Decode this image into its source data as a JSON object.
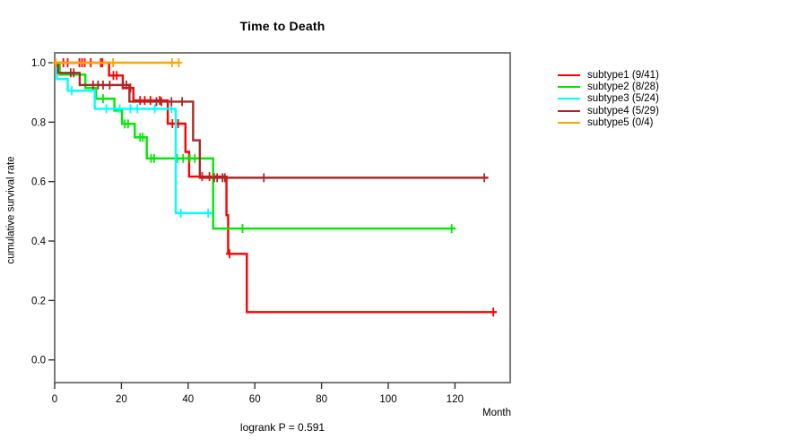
{
  "chart_data": {
    "type": "line",
    "subtype": "kaplan-meier-step-curves",
    "title": "Time to Death",
    "xlabel": "Month",
    "ylabel": "cumulative survival rate",
    "footnote": "logrank P = 0.591",
    "grid": false,
    "legend_position": "right-outside",
    "x_axis": {
      "ticks": [
        0,
        20,
        40,
        60,
        80,
        100,
        120
      ],
      "labels": [
        "0",
        "20",
        "40",
        "60",
        "80",
        "100",
        "120"
      ],
      "range": [
        0,
        136.5
      ]
    },
    "y_axis": {
      "ticks": [
        0.0,
        0.2,
        0.4,
        0.6,
        0.8,
        1.0
      ],
      "labels": [
        "0.0",
        "0.2",
        "0.4",
        "0.6",
        "0.8",
        "1.0"
      ],
      "range": [
        -0.08,
        1.03
      ]
    },
    "series": [
      {
        "name": "subtype1 (9/41)",
        "color": "#FF0000",
        "start_survival": 1.0,
        "steps": [
          [
            16.3,
            0.957
          ],
          [
            20.4,
            0.915
          ],
          [
            23.6,
            0.873
          ],
          [
            33.9,
            0.795
          ],
          [
            39.2,
            0.7
          ],
          [
            40.3,
            0.617
          ],
          [
            51.5,
            0.487
          ],
          [
            52.0,
            0.357
          ],
          [
            57.6,
            0.161
          ]
        ],
        "end_month": 132.5,
        "censors": [
          [
            2.6,
            1.0
          ],
          [
            3.9,
            1.0
          ],
          [
            7.4,
            1.0
          ],
          [
            8.2,
            1.0
          ],
          [
            9.0,
            1.0
          ],
          [
            10.8,
            1.0
          ],
          [
            13.8,
            1.0
          ],
          [
            14.3,
            1.0
          ],
          [
            17.6,
            0.957
          ],
          [
            18.6,
            0.957
          ],
          [
            22.7,
            0.915
          ],
          [
            25.6,
            0.873
          ],
          [
            27.0,
            0.873
          ],
          [
            28.7,
            0.873
          ],
          [
            31.5,
            0.873
          ],
          [
            35.3,
            0.795
          ],
          [
            37.0,
            0.795
          ],
          [
            44.2,
            0.617
          ],
          [
            46.4,
            0.617
          ],
          [
            52.4,
            0.357
          ],
          [
            131.5,
            0.161
          ]
        ]
      },
      {
        "name": "subtype2 (8/28)",
        "color": "#00E800",
        "start_survival": 1.0,
        "steps": [
          [
            1.5,
            0.96
          ],
          [
            9.2,
            0.915
          ],
          [
            12.4,
            0.879
          ],
          [
            17.9,
            0.839
          ],
          [
            20.2,
            0.794
          ],
          [
            24.0,
            0.749
          ],
          [
            27.6,
            0.678
          ],
          [
            47.5,
            0.442
          ]
        ],
        "end_month": 120.2,
        "censors": [
          [
            14.5,
            0.879
          ],
          [
            21.0,
            0.794
          ],
          [
            22.0,
            0.794
          ],
          [
            25.6,
            0.749
          ],
          [
            26.4,
            0.749
          ],
          [
            28.9,
            0.678
          ],
          [
            29.8,
            0.678
          ],
          [
            36.7,
            0.678
          ],
          [
            38.5,
            0.678
          ],
          [
            40.5,
            0.678
          ],
          [
            42.0,
            0.678
          ],
          [
            43.5,
            0.678
          ],
          [
            56.3,
            0.442
          ],
          [
            119.0,
            0.442
          ]
        ]
      },
      {
        "name": "subtype3 (5/24)",
        "color": "#00FFFF",
        "start_survival": 1.0,
        "steps": [
          [
            0.7,
            0.945
          ],
          [
            3.9,
            0.906
          ],
          [
            12.0,
            0.845
          ],
          [
            36.3,
            0.494
          ]
        ],
        "end_month": 47.3,
        "censors": [
          [
            5.1,
            0.906
          ],
          [
            15.5,
            0.845
          ],
          [
            19.5,
            0.845
          ],
          [
            22.7,
            0.845
          ],
          [
            24.8,
            0.845
          ],
          [
            30.0,
            0.845
          ],
          [
            35.0,
            0.845
          ],
          [
            37.8,
            0.494
          ],
          [
            46.0,
            0.494
          ]
        ]
      },
      {
        "name": "subtype4 (5/29)",
        "color": "#A52A2A",
        "start_survival": 1.0,
        "steps": [
          [
            1.0,
            0.966
          ],
          [
            7.5,
            0.925
          ],
          [
            22.4,
            0.869
          ],
          [
            41.5,
            0.739
          ],
          [
            43.5,
            0.613
          ]
        ],
        "end_month": 130.0,
        "censors": [
          [
            4.8,
            0.966
          ],
          [
            5.7,
            0.966
          ],
          [
            11.5,
            0.925
          ],
          [
            13.0,
            0.925
          ],
          [
            14.5,
            0.925
          ],
          [
            16.5,
            0.925
          ],
          [
            20.5,
            0.925
          ],
          [
            21.5,
            0.925
          ],
          [
            30.5,
            0.869
          ],
          [
            32.0,
            0.869
          ],
          [
            35.0,
            0.869
          ],
          [
            38.2,
            0.869
          ],
          [
            47.8,
            0.613
          ],
          [
            48.7,
            0.613
          ],
          [
            50.3,
            0.613
          ],
          [
            51.0,
            0.613
          ],
          [
            62.7,
            0.613
          ],
          [
            128.8,
            0.613
          ]
        ]
      },
      {
        "name": "subtype5 (0/4)",
        "color": "#FFA500",
        "start_survival": 1.0,
        "steps": [],
        "end_month": 37.5,
        "censors": [
          [
            0.3,
            1.0
          ],
          [
            17.5,
            1.0
          ],
          [
            35.2,
            1.0
          ],
          [
            37.2,
            1.0
          ]
        ]
      }
    ]
  }
}
